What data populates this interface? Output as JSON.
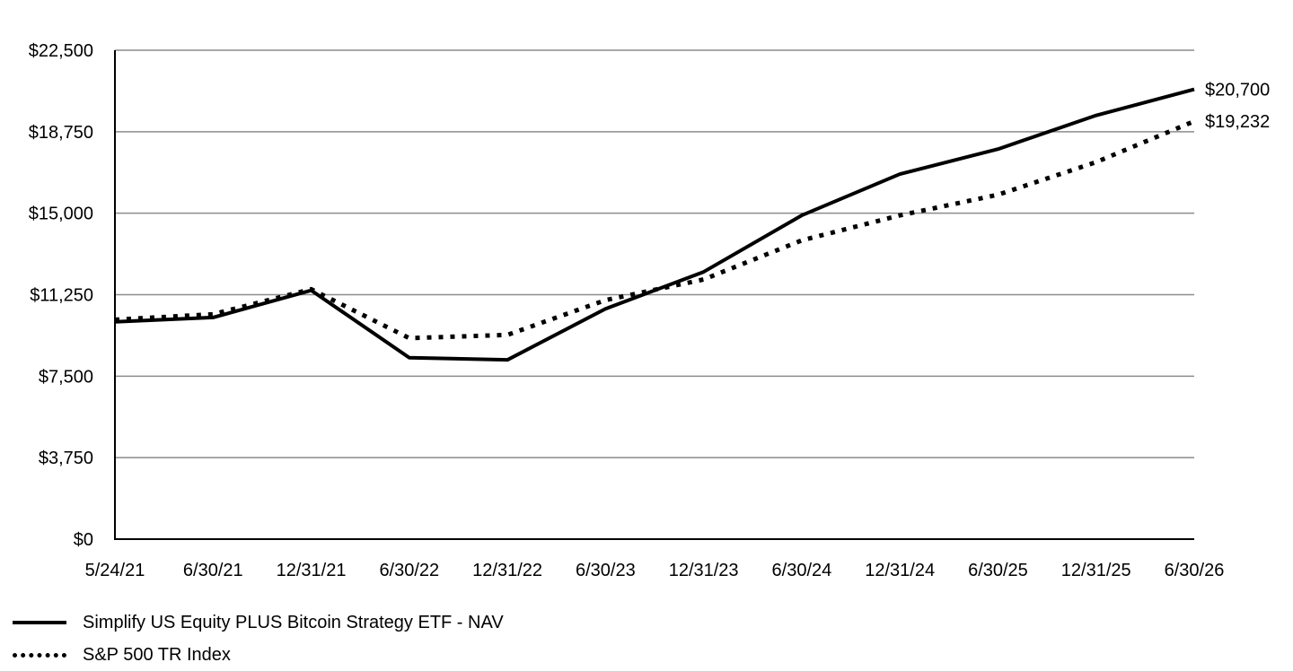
{
  "chart_data": {
    "type": "line",
    "title": "",
    "xlabel": "",
    "ylabel": "",
    "categories": [
      "5/24/21",
      "6/30/21",
      "12/31/21",
      "6/30/22",
      "12/31/22",
      "6/30/23",
      "12/31/23",
      "6/30/24",
      "12/31/24",
      "6/30/25",
      "12/31/25",
      "6/30/26"
    ],
    "y_ticks": [
      "$0",
      "$3,750",
      "$7,500",
      "$11,250",
      "$15,000",
      "$18,750",
      "$22,500"
    ],
    "ylim": [
      0,
      22500
    ],
    "grid": true,
    "legend_position": "bottom-left",
    "series": [
      {
        "name": "Simplify US Equity PLUS Bitcoin Strategy ETF - NAV",
        "style": "solid",
        "values": [
          10000,
          10200,
          11450,
          8350,
          8250,
          10600,
          12300,
          14900,
          16800,
          17950,
          19500,
          20700
        ],
        "end_label": "$20,700"
      },
      {
        "name": "S&P 500 TR Index",
        "style": "dotted",
        "values": [
          10100,
          10350,
          11500,
          9250,
          9400,
          11000,
          11950,
          13750,
          14900,
          15850,
          17350,
          19232
        ],
        "end_label": "$19,232"
      }
    ],
    "colors": {
      "line": "#000000",
      "grid": "#8c8c8c",
      "axis": "#000000"
    }
  }
}
